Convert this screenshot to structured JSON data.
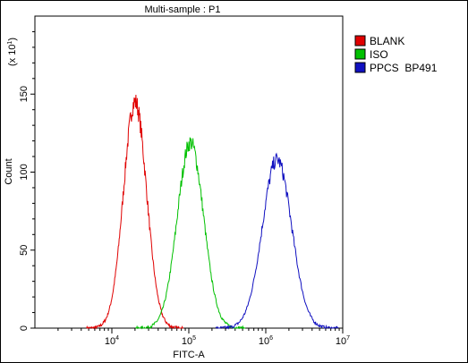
{
  "chart_data": {
    "type": "line",
    "title": "Multi-sample : P1",
    "xlabel": "FITC-A",
    "ylabel": "Count",
    "y_multiplier_label": "(x 10",
    "y_multiplier_exp": "1",
    "y_multiplier_close": ")",
    "x_scale": "log",
    "xlim": [
      1000,
      10000000
    ],
    "ylim": [
      0,
      200
    ],
    "x_ticks": [
      {
        "base": "10",
        "exp": "4",
        "value": 10000
      },
      {
        "base": "10",
        "exp": "5",
        "value": 100000
      },
      {
        "base": "10",
        "exp": "6",
        "value": 1000000
      },
      {
        "base": "10",
        "exp": "7",
        "value": 10000000
      }
    ],
    "y_ticks": [
      {
        "label": "0",
        "value": 0
      },
      {
        "label": "50",
        "value": 50
      },
      {
        "label": "100",
        "value": 100
      },
      {
        "label": "150",
        "value": 150
      }
    ],
    "grid": false,
    "legend_position": "right",
    "series": [
      {
        "name": "BLANK",
        "color": "#e00000",
        "peak_x": 20000,
        "peak_y": 145,
        "width_decades": 0.15
      },
      {
        "name": "ISO",
        "color": "#00c000",
        "peak_x": 105000,
        "peak_y": 119,
        "width_decades": 0.17
      },
      {
        "name": "PPCS  BP491",
        "color": "#1010c0",
        "peak_x": 1400000,
        "peak_y": 108,
        "width_decades": 0.19
      }
    ]
  }
}
